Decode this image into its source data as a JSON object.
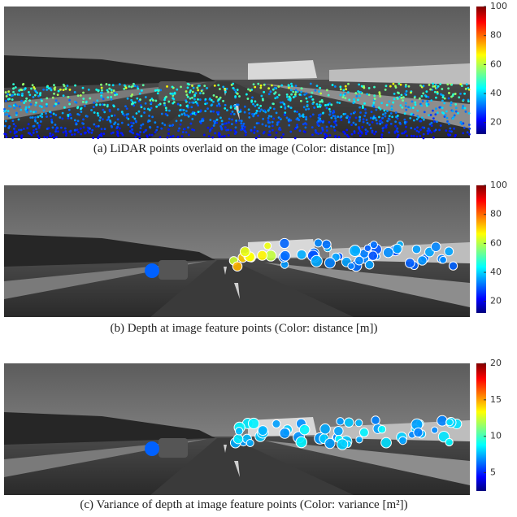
{
  "panels": [
    {
      "caption": "(a) LiDAR points overlaid on the image (Color: distance [m])",
      "colorbar": {
        "colormap": "jet",
        "lim": [
          12,
          100
        ],
        "ticks": [
          20,
          40,
          60,
          80,
          100
        ]
      }
    },
    {
      "caption": "(b) Depth at image feature points (Color: distance [m])",
      "colorbar": {
        "colormap": "jet",
        "lim": [
          12,
          100
        ],
        "ticks": [
          20,
          40,
          60,
          80,
          100
        ]
      }
    },
    {
      "caption": "(c) Variance of depth at image feature points (Color: variance [m²])",
      "colorbar": {
        "colormap": "jet",
        "lim": [
          2.5,
          20
        ],
        "ticks": [
          5,
          10,
          15,
          20
        ]
      }
    }
  ]
}
